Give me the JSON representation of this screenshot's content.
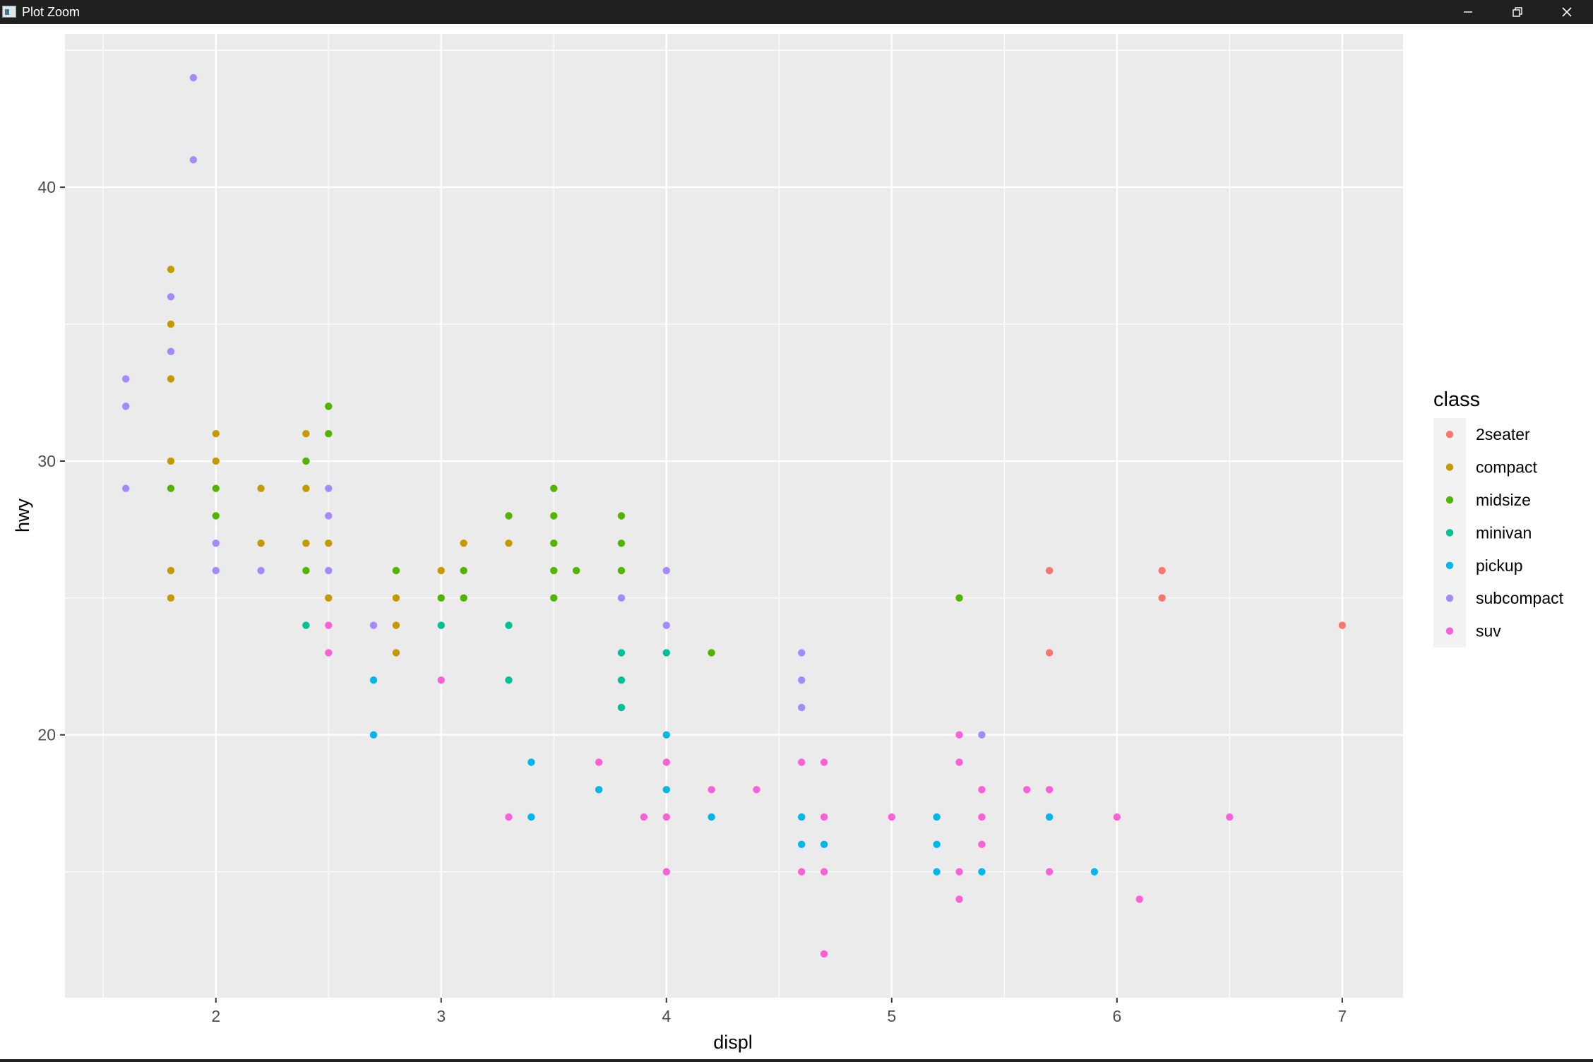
{
  "window": {
    "title": "Plot Zoom",
    "minimize_icon": "minimize-icon",
    "maximize_icon": "restore-icon",
    "close_icon": "close-icon"
  },
  "chart_data": {
    "type": "scatter",
    "title": "",
    "xlabel": "displ",
    "ylabel": "hwy",
    "xlim": [
      1.33,
      7.27
    ],
    "ylim": [
      10.4,
      45.6
    ],
    "xticks": [
      2,
      3,
      4,
      5,
      6,
      7
    ],
    "yticks": [
      20,
      30,
      40
    ],
    "grid": true,
    "legend_title": "class",
    "legend_position": "right",
    "panel_color": "#ebebeb",
    "series": [
      {
        "name": "2seater",
        "color": "#F8766D",
        "points": [
          [
            5.7,
            26
          ],
          [
            5.7,
            23
          ],
          [
            6.2,
            26
          ],
          [
            6.2,
            25
          ],
          [
            7.0,
            24
          ]
        ]
      },
      {
        "name": "compact",
        "color": "#C49A00",
        "points": [
          [
            1.8,
            37
          ],
          [
            1.8,
            35
          ],
          [
            1.8,
            33
          ],
          [
            1.8,
            30
          ],
          [
            1.8,
            26
          ],
          [
            1.8,
            25
          ],
          [
            2.0,
            31
          ],
          [
            2.0,
            30
          ],
          [
            2.2,
            29
          ],
          [
            2.2,
            27
          ],
          [
            2.4,
            31
          ],
          [
            2.4,
            29
          ],
          [
            2.4,
            27
          ],
          [
            2.5,
            27
          ],
          [
            2.5,
            25
          ],
          [
            2.8,
            25
          ],
          [
            2.8,
            24
          ],
          [
            2.8,
            23
          ],
          [
            3.0,
            26
          ],
          [
            3.1,
            27
          ],
          [
            3.3,
            27
          ]
        ]
      },
      {
        "name": "midsize",
        "color": "#53B400",
        "points": [
          [
            1.8,
            29
          ],
          [
            2.0,
            29
          ],
          [
            2.0,
            28
          ],
          [
            2.4,
            30
          ],
          [
            2.4,
            26
          ],
          [
            2.5,
            32
          ],
          [
            2.5,
            31
          ],
          [
            2.8,
            26
          ],
          [
            3.0,
            25
          ],
          [
            3.1,
            26
          ],
          [
            3.1,
            25
          ],
          [
            3.3,
            28
          ],
          [
            3.5,
            29
          ],
          [
            3.5,
            28
          ],
          [
            3.5,
            27
          ],
          [
            3.5,
            26
          ],
          [
            3.5,
            25
          ],
          [
            3.6,
            26
          ],
          [
            3.8,
            28
          ],
          [
            3.8,
            27
          ],
          [
            3.8,
            26
          ],
          [
            4.2,
            23
          ],
          [
            5.3,
            25
          ]
        ]
      },
      {
        "name": "minivan",
        "color": "#00C094",
        "points": [
          [
            2.4,
            24
          ],
          [
            3.0,
            24
          ],
          [
            3.3,
            24
          ],
          [
            3.3,
            22
          ],
          [
            3.8,
            23
          ],
          [
            3.8,
            22
          ],
          [
            3.8,
            21
          ],
          [
            4.0,
            23
          ]
        ]
      },
      {
        "name": "pickup",
        "color": "#00B6EB",
        "points": [
          [
            2.7,
            22
          ],
          [
            2.7,
            20
          ],
          [
            3.4,
            19
          ],
          [
            3.4,
            17
          ],
          [
            3.7,
            18
          ],
          [
            4.0,
            20
          ],
          [
            4.0,
            18
          ],
          [
            4.2,
            17
          ],
          [
            4.6,
            17
          ],
          [
            4.6,
            16
          ],
          [
            4.7,
            16
          ],
          [
            5.2,
            17
          ],
          [
            5.2,
            16
          ],
          [
            5.2,
            15
          ],
          [
            5.4,
            15
          ],
          [
            5.7,
            17
          ],
          [
            5.9,
            15
          ]
        ]
      },
      {
        "name": "subcompact",
        "color": "#A58AFF",
        "points": [
          [
            1.6,
            33
          ],
          [
            1.6,
            32
          ],
          [
            1.6,
            29
          ],
          [
            1.8,
            36
          ],
          [
            1.8,
            34
          ],
          [
            1.9,
            44
          ],
          [
            1.9,
            41
          ],
          [
            2.0,
            27
          ],
          [
            2.0,
            26
          ],
          [
            2.2,
            26
          ],
          [
            2.5,
            29
          ],
          [
            2.5,
            28
          ],
          [
            2.5,
            26
          ],
          [
            2.7,
            24
          ],
          [
            3.8,
            25
          ],
          [
            4.0,
            26
          ],
          [
            4.0,
            24
          ],
          [
            4.6,
            23
          ],
          [
            4.6,
            22
          ],
          [
            4.6,
            21
          ],
          [
            5.4,
            20
          ]
        ]
      },
      {
        "name": "suv",
        "color": "#FB61D7",
        "points": [
          [
            2.5,
            24
          ],
          [
            2.5,
            23
          ],
          [
            3.0,
            22
          ],
          [
            3.3,
            17
          ],
          [
            3.7,
            19
          ],
          [
            3.9,
            17
          ],
          [
            4.0,
            19
          ],
          [
            4.0,
            17
          ],
          [
            4.0,
            15
          ],
          [
            4.2,
            18
          ],
          [
            4.4,
            18
          ],
          [
            4.6,
            19
          ],
          [
            4.6,
            15
          ],
          [
            4.7,
            19
          ],
          [
            4.7,
            17
          ],
          [
            4.7,
            15
          ],
          [
            4.7,
            12
          ],
          [
            5.0,
            17
          ],
          [
            5.3,
            20
          ],
          [
            5.3,
            19
          ],
          [
            5.3,
            15
          ],
          [
            5.3,
            14
          ],
          [
            5.4,
            18
          ],
          [
            5.4,
            17
          ],
          [
            5.4,
            16
          ],
          [
            5.6,
            18
          ],
          [
            5.7,
            18
          ],
          [
            5.7,
            15
          ],
          [
            6.0,
            17
          ],
          [
            6.1,
            14
          ],
          [
            6.5,
            17
          ]
        ]
      }
    ]
  }
}
